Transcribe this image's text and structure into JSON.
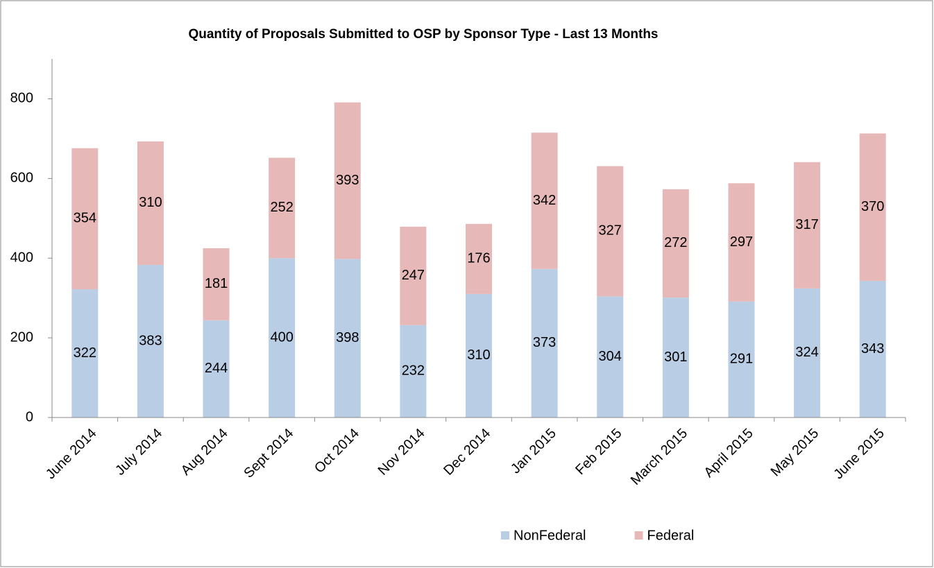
{
  "chart_data": {
    "type": "bar",
    "stacked": true,
    "title": "Quantity of Proposals Submitted to OSP by Sponsor Type - Last 13 Months",
    "categories": [
      "June 2014",
      "July 2014",
      "Aug 2014",
      "Sept 2014",
      "Oct 2014",
      "Nov 2014",
      "Dec 2014",
      "Jan 2015",
      "Feb 2015",
      "March 2015",
      "April 2015",
      "May 2015",
      "June 2015"
    ],
    "series": [
      {
        "name": "NonFederal",
        "color": "#b9cde5",
        "values": [
          322,
          383,
          244,
          400,
          398,
          232,
          310,
          373,
          304,
          301,
          291,
          324,
          343
        ]
      },
      {
        "name": "Federal",
        "color": "#e6b9b8",
        "values": [
          354,
          310,
          181,
          252,
          393,
          247,
          176,
          342,
          327,
          272,
          297,
          317,
          370
        ]
      }
    ],
    "ylim": [
      0,
      900
    ],
    "yticks": [
      0,
      200,
      400,
      600,
      800
    ],
    "grid": false,
    "legend": "bottom"
  }
}
